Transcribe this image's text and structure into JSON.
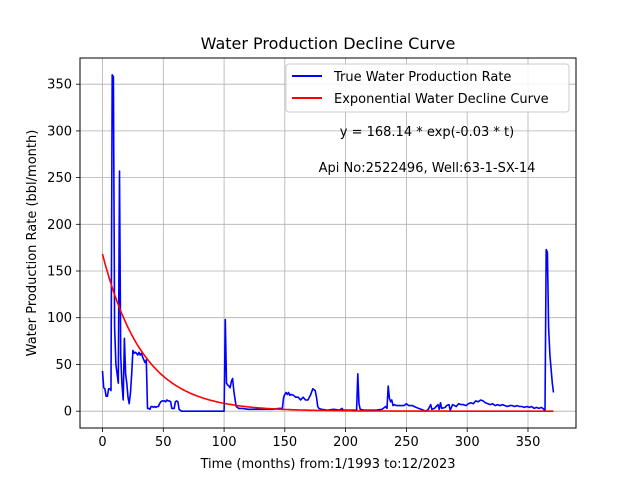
{
  "chart_data": {
    "type": "line",
    "title": "Water Production Decline Curve",
    "xlabel": "Time (months) from:1/1993 to:12/2023",
    "ylabel": "Water Production Rate (bbl/month)",
    "xlim": [
      -18.5,
      389.5
    ],
    "ylim": [
      -18,
      378
    ],
    "x_ticks": [
      0,
      50,
      100,
      150,
      200,
      250,
      300,
      350
    ],
    "y_ticks": [
      0,
      50,
      100,
      150,
      200,
      250,
      300,
      350
    ],
    "grid": true,
    "legend_position": "top-right",
    "annotations": [
      "y = 168.14 * exp(-0.03 * t)",
      "Api No:2522496, Well:63-1-SX-14"
    ],
    "series": [
      {
        "name": "True Water Production Rate",
        "color": "#0000ff",
        "points": [
          [
            0,
            43
          ],
          [
            1,
            25
          ],
          [
            2,
            24
          ],
          [
            3,
            16
          ],
          [
            4,
            16
          ],
          [
            5,
            24
          ],
          [
            6,
            24
          ],
          [
            7,
            22
          ],
          [
            8,
            360
          ],
          [
            9,
            358
          ],
          [
            10,
            90
          ],
          [
            11,
            50
          ],
          [
            12,
            40
          ],
          [
            13,
            30
          ],
          [
            14,
            257
          ],
          [
            15,
            60
          ],
          [
            16,
            30
          ],
          [
            17,
            12
          ],
          [
            18,
            78
          ],
          [
            19,
            40
          ],
          [
            20,
            30
          ],
          [
            21,
            15
          ],
          [
            22,
            8
          ],
          [
            23,
            20
          ],
          [
            24,
            40
          ],
          [
            25,
            65
          ],
          [
            26,
            62
          ],
          [
            27,
            63
          ],
          [
            28,
            62
          ],
          [
            29,
            60
          ],
          [
            30,
            63
          ],
          [
            31,
            60
          ],
          [
            32,
            62
          ],
          [
            33,
            58
          ],
          [
            34,
            55
          ],
          [
            35,
            52
          ],
          [
            36,
            55
          ],
          [
            37,
            3
          ],
          [
            38,
            3
          ],
          [
            39,
            2
          ],
          [
            40,
            5
          ],
          [
            41,
            5
          ],
          [
            42,
            4
          ],
          [
            43,
            5
          ],
          [
            44,
            4
          ],
          [
            45,
            5
          ],
          [
            46,
            5
          ],
          [
            47,
            8
          ],
          [
            48,
            10
          ],
          [
            49,
            11
          ],
          [
            50,
            11
          ],
          [
            51,
            11
          ],
          [
            52,
            10
          ],
          [
            53,
            12
          ],
          [
            54,
            11
          ],
          [
            55,
            11
          ],
          [
            56,
            10
          ],
          [
            57,
            3
          ],
          [
            58,
            3
          ],
          [
            59,
            3
          ],
          [
            60,
            10
          ],
          [
            61,
            11
          ],
          [
            62,
            10
          ],
          [
            63,
            2
          ],
          [
            64,
            1
          ],
          [
            65,
            0
          ],
          [
            70,
            0
          ],
          [
            80,
            0
          ],
          [
            90,
            0
          ],
          [
            100,
            0
          ],
          [
            101,
            98
          ],
          [
            102,
            30
          ],
          [
            103,
            28
          ],
          [
            104,
            27
          ],
          [
            105,
            25
          ],
          [
            106,
            32
          ],
          [
            107,
            35
          ],
          [
            108,
            22
          ],
          [
            109,
            13
          ],
          [
            110,
            5
          ],
          [
            111,
            4
          ],
          [
            112,
            3
          ],
          [
            115,
            3
          ],
          [
            120,
            2
          ],
          [
            125,
            2
          ],
          [
            130,
            2
          ],
          [
            135,
            2
          ],
          [
            140,
            2
          ],
          [
            145,
            3
          ],
          [
            148,
            3
          ],
          [
            149,
            15
          ],
          [
            150,
            18
          ],
          [
            151,
            20
          ],
          [
            152,
            18
          ],
          [
            153,
            20
          ],
          [
            154,
            17
          ],
          [
            155,
            18
          ],
          [
            157,
            17
          ],
          [
            159,
            15
          ],
          [
            161,
            15
          ],
          [
            163,
            12
          ],
          [
            165,
            15
          ],
          [
            167,
            12
          ],
          [
            169,
            12
          ],
          [
            171,
            17
          ],
          [
            173,
            24
          ],
          [
            175,
            22
          ],
          [
            176,
            15
          ],
          [
            177,
            5
          ],
          [
            178,
            3
          ],
          [
            180,
            2
          ],
          [
            185,
            1
          ],
          [
            190,
            2
          ],
          [
            195,
            1
          ],
          [
            197,
            3
          ],
          [
            198,
            1
          ],
          [
            200,
            1
          ],
          [
            205,
            1
          ],
          [
            209,
            1
          ],
          [
            210,
            40
          ],
          [
            211,
            8
          ],
          [
            212,
            2
          ],
          [
            215,
            1
          ],
          [
            220,
            1
          ],
          [
            225,
            1
          ],
          [
            230,
            2
          ],
          [
            233,
            5
          ],
          [
            234,
            3
          ],
          [
            235,
            27
          ],
          [
            236,
            14
          ],
          [
            237,
            10
          ],
          [
            238,
            12
          ],
          [
            239,
            6
          ],
          [
            240,
            7
          ],
          [
            242,
            6
          ],
          [
            245,
            6
          ],
          [
            248,
            6
          ],
          [
            250,
            8
          ],
          [
            252,
            6
          ],
          [
            255,
            6
          ],
          [
            258,
            4
          ],
          [
            260,
            3
          ],
          [
            262,
            2
          ],
          [
            264,
            1
          ],
          [
            266,
            0
          ],
          [
            268,
            2
          ],
          [
            270,
            7
          ],
          [
            271,
            2
          ],
          [
            273,
            3
          ],
          [
            276,
            7
          ],
          [
            277,
            2
          ],
          [
            278,
            9
          ],
          [
            279,
            3
          ],
          [
            282,
            4
          ],
          [
            283,
            6
          ],
          [
            285,
            7
          ],
          [
            286,
            1
          ],
          [
            288,
            7
          ],
          [
            291,
            5
          ],
          [
            293,
            8
          ],
          [
            295,
            7
          ],
          [
            297,
            7
          ],
          [
            299,
            6
          ],
          [
            301,
            8
          ],
          [
            303,
            9
          ],
          [
            305,
            8
          ],
          [
            307,
            11
          ],
          [
            309,
            10
          ],
          [
            311,
            12
          ],
          [
            313,
            11
          ],
          [
            315,
            9
          ],
          [
            317,
            8
          ],
          [
            319,
            7
          ],
          [
            321,
            8
          ],
          [
            323,
            6
          ],
          [
            325,
            7
          ],
          [
            327,
            6
          ],
          [
            329,
            7
          ],
          [
            331,
            6
          ],
          [
            333,
            5
          ],
          [
            335,
            6
          ],
          [
            337,
            6
          ],
          [
            339,
            5
          ],
          [
            341,
            6
          ],
          [
            343,
            5
          ],
          [
            345,
            5
          ],
          [
            347,
            4
          ],
          [
            349,
            5
          ],
          [
            351,
            4
          ],
          [
            353,
            5
          ],
          [
            355,
            3
          ],
          [
            357,
            4
          ],
          [
            359,
            3
          ],
          [
            361,
            4
          ],
          [
            363,
            2
          ],
          [
            364,
            1
          ],
          [
            365,
            173
          ],
          [
            366,
            170
          ],
          [
            367,
            90
          ],
          [
            368,
            60
          ],
          [
            369,
            45
          ],
          [
            370,
            30
          ],
          [
            371,
            20
          ]
        ]
      },
      {
        "name": "Exponential Water Decline Curve",
        "color": "#ff0000",
        "model": {
          "a": 168.14,
          "b": 0.03,
          "t_start": 0,
          "t_end": 371
        }
      }
    ]
  }
}
